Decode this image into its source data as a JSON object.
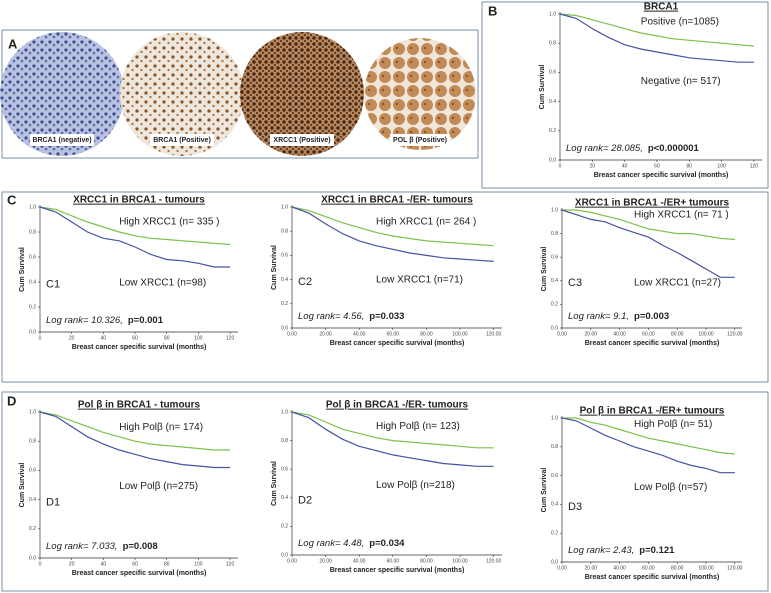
{
  "figure": {
    "panel_labels": [
      "A",
      "B",
      "C",
      "D"
    ],
    "image_captions": [
      "BRCA1 (negative)",
      "BRCA1 (Positive)",
      "XRCC1 (Positive)",
      "POL β (Positive)"
    ]
  },
  "chart_data": [
    {
      "type": "line",
      "title": "BRCA1",
      "xlabel": "Breast cancer specific survival (months)",
      "ylabel": "Cum Survival",
      "xlim": [
        0,
        125
      ],
      "ylim": [
        0,
        1
      ],
      "xticks": [
        0,
        20,
        40,
        60,
        80,
        100,
        120
      ],
      "yticks": [
        {
          "value": 0,
          "label": "0.0"
        },
        {
          "value": 0.2,
          "label": "0.2"
        },
        {
          "value": 0.4,
          "label": "0.4"
        },
        {
          "value": 0.6,
          "label": "0.6"
        },
        {
          "value": 0.8,
          "label": "0.8"
        },
        {
          "value": 1,
          "label": "1.0"
        }
      ],
      "series": [
        {
          "name": "Positive (n=1085)",
          "color": "#7cc24a",
          "x": [
            0,
            10,
            20,
            30,
            40,
            50,
            60,
            70,
            80,
            90,
            100,
            110,
            120
          ],
          "values": [
            1,
            0.99,
            0.96,
            0.93,
            0.9,
            0.87,
            0.85,
            0.83,
            0.82,
            0.81,
            0.8,
            0.79,
            0.78
          ]
        },
        {
          "name": "Negative (n= 517)",
          "color": "#4453a3",
          "x": [
            0,
            10,
            20,
            30,
            40,
            50,
            60,
            70,
            80,
            90,
            100,
            110,
            120
          ],
          "values": [
            1,
            0.97,
            0.9,
            0.84,
            0.79,
            0.76,
            0.74,
            0.72,
            0.7,
            0.69,
            0.68,
            0.67,
            0.67
          ]
        }
      ],
      "stat": "Log rank= 28.085,",
      "p_value": "p<0.000001"
    },
    {
      "type": "line",
      "label": "C1",
      "title": "XRCC1 in BRCA1 - tumours",
      "xlabel": "Breast cancer specific survival (months)",
      "ylabel": "Cum Survival",
      "xlim": [
        0,
        125
      ],
      "ylim": [
        0,
        1
      ],
      "xticks": [
        0,
        20,
        40,
        60,
        80,
        100,
        120
      ],
      "yticks": [
        {
          "value": 0,
          "label": "0.0"
        },
        {
          "value": 0.2,
          "label": "0.2"
        },
        {
          "value": 0.4,
          "label": "0.4"
        },
        {
          "value": 0.6,
          "label": "0.6"
        },
        {
          "value": 0.8,
          "label": "0.8"
        },
        {
          "value": 1,
          "label": "1.0"
        }
      ],
      "series": [
        {
          "name": "High XRCC1  (n= 335 )",
          "color": "#7cc24a",
          "x": [
            0,
            10,
            20,
            30,
            40,
            50,
            60,
            70,
            80,
            90,
            100,
            110,
            120
          ],
          "values": [
            1,
            0.98,
            0.93,
            0.88,
            0.84,
            0.8,
            0.77,
            0.75,
            0.74,
            0.73,
            0.72,
            0.71,
            0.7
          ]
        },
        {
          "name": "Low XRCC1  (n=98)",
          "color": "#4453a3",
          "x": [
            0,
            10,
            20,
            30,
            40,
            50,
            60,
            70,
            80,
            90,
            100,
            110,
            120
          ],
          "values": [
            1,
            0.96,
            0.88,
            0.8,
            0.75,
            0.73,
            0.68,
            0.62,
            0.58,
            0.57,
            0.55,
            0.52,
            0.52
          ]
        }
      ],
      "stat": "Log rank= 10.326,",
      "p_value": "p=0.001"
    },
    {
      "type": "line",
      "label": "C2",
      "title": "XRCC1 in BRCA1 -/ER- tumours",
      "xlabel": "Breast cancer specific survival (months)",
      "ylabel": "Cum Survival",
      "xlim": [
        0,
        125
      ],
      "ylim": [
        0,
        1
      ],
      "xticks": [
        {
          "value": 0,
          "label": "0.00"
        },
        {
          "value": 20,
          "label": "20.00"
        },
        {
          "value": 40,
          "label": "40.00"
        },
        {
          "value": 60,
          "label": "60.00"
        },
        {
          "value": 80,
          "label": "80.00"
        },
        {
          "value": 100,
          "label": "100.00"
        },
        {
          "value": 120,
          "label": "120.00"
        }
      ],
      "yticks": [
        {
          "value": 0,
          "label": "0.0"
        },
        {
          "value": 0.2,
          "label": "0.2"
        },
        {
          "value": 0.4,
          "label": "0.4"
        },
        {
          "value": 0.6,
          "label": "0.6"
        },
        {
          "value": 0.8,
          "label": "0.8"
        },
        {
          "value": 1,
          "label": "1.0"
        }
      ],
      "series": [
        {
          "name": "High XRCC1   (n= 264 )",
          "color": "#7cc24a",
          "x": [
            0,
            10,
            20,
            30,
            40,
            50,
            60,
            70,
            80,
            90,
            100,
            110,
            120
          ],
          "values": [
            1,
            0.97,
            0.92,
            0.87,
            0.83,
            0.79,
            0.76,
            0.74,
            0.72,
            0.71,
            0.7,
            0.69,
            0.68
          ]
        },
        {
          "name": "Low XRCC1  (n=71)",
          "color": "#4453a3",
          "x": [
            0,
            10,
            20,
            30,
            40,
            50,
            60,
            70,
            80,
            90,
            100,
            110,
            120
          ],
          "values": [
            1,
            0.95,
            0.86,
            0.78,
            0.72,
            0.68,
            0.65,
            0.62,
            0.6,
            0.58,
            0.57,
            0.56,
            0.55
          ]
        }
      ],
      "stat": "Log rank= 4.56,",
      "p_value": "p=0.033"
    },
    {
      "type": "line",
      "label": "C3",
      "title": "XRCC1 in BRCA1 -/ER+ tumours",
      "xlabel": "Breast cancer specific survival (months)",
      "ylabel": "Cum Survival",
      "xlim": [
        0,
        125
      ],
      "ylim": [
        0,
        1
      ],
      "xticks": [
        {
          "value": 0,
          "label": "0.00"
        },
        {
          "value": 20,
          "label": "20.00"
        },
        {
          "value": 40,
          "label": "40.00"
        },
        {
          "value": 60,
          "label": "60.00"
        },
        {
          "value": 80,
          "label": "80.00"
        },
        {
          "value": 100,
          "label": "100.00"
        },
        {
          "value": 120,
          "label": "120.00"
        }
      ],
      "yticks": [
        {
          "value": 0,
          "label": "0.0"
        },
        {
          "value": 0.2,
          "label": "0.2"
        },
        {
          "value": 0.4,
          "label": "0.4"
        },
        {
          "value": 0.6,
          "label": "0.6"
        },
        {
          "value": 0.8,
          "label": "0.8"
        },
        {
          "value": 1,
          "label": "1.0"
        }
      ],
      "series": [
        {
          "name": "High XRCC1   (n= 71 )",
          "color": "#7cc24a",
          "x": [
            0,
            10,
            20,
            30,
            40,
            50,
            60,
            70,
            80,
            90,
            100,
            110,
            120
          ],
          "values": [
            1,
            1,
            0.98,
            0.95,
            0.92,
            0.88,
            0.84,
            0.82,
            0.8,
            0.8,
            0.78,
            0.76,
            0.75
          ]
        },
        {
          "name": "Low XRCC1  (n=27)",
          "color": "#4453a3",
          "x": [
            0,
            10,
            20,
            30,
            40,
            50,
            60,
            70,
            80,
            90,
            100,
            110,
            120
          ],
          "values": [
            1,
            0.96,
            0.92,
            0.9,
            0.85,
            0.81,
            0.77,
            0.7,
            0.64,
            0.57,
            0.5,
            0.43,
            0.43
          ]
        }
      ],
      "stat": "Log rank= 9.1,",
      "p_value": "p=0.003"
    },
    {
      "type": "line",
      "label": "D1",
      "title": "Pol β in BRCA1 - tumours",
      "xlabel": "Breast cancer specific survival (months)",
      "ylabel": "Cum Survival",
      "xlim": [
        0,
        125
      ],
      "ylim": [
        0,
        1
      ],
      "xticks": [
        0,
        20,
        40,
        60,
        80,
        100,
        120
      ],
      "yticks": [
        {
          "value": 0,
          "label": "0.0"
        },
        {
          "value": 0.2,
          "label": "0.2"
        },
        {
          "value": 0.4,
          "label": "0.4"
        },
        {
          "value": 0.6,
          "label": "0.6"
        },
        {
          "value": 0.8,
          "label": "0.8"
        },
        {
          "value": 1,
          "label": "1.0"
        }
      ],
      "series": [
        {
          "name": "High Polβ   (n= 174)",
          "color": "#7cc24a",
          "x": [
            0,
            10,
            20,
            30,
            40,
            50,
            60,
            70,
            80,
            90,
            100,
            110,
            120
          ],
          "values": [
            1,
            0.98,
            0.94,
            0.9,
            0.86,
            0.83,
            0.8,
            0.78,
            0.77,
            0.76,
            0.75,
            0.74,
            0.74
          ]
        },
        {
          "name": "Low Polβ  (n=275)",
          "color": "#4453a3",
          "x": [
            0,
            10,
            20,
            30,
            40,
            50,
            60,
            70,
            80,
            90,
            100,
            110,
            120
          ],
          "values": [
            1,
            0.97,
            0.9,
            0.83,
            0.78,
            0.74,
            0.71,
            0.68,
            0.66,
            0.64,
            0.63,
            0.62,
            0.62
          ]
        }
      ],
      "stat": "Log rank= 7.033,",
      "p_value": "p=0.008"
    },
    {
      "type": "line",
      "label": "D2",
      "title": "Pol β in BRCA1 -/ER- tumours",
      "xlabel": "Breast cancer specific survival (months)",
      "ylabel": "Cum Survival",
      "xlim": [
        0,
        125
      ],
      "ylim": [
        0,
        1
      ],
      "xticks": [
        {
          "value": 0,
          "label": "0.00"
        },
        {
          "value": 20,
          "label": "20.00"
        },
        {
          "value": 40,
          "label": "40.00"
        },
        {
          "value": 60,
          "label": "60.00"
        },
        {
          "value": 80,
          "label": "80.00"
        },
        {
          "value": 100,
          "label": "100.00"
        },
        {
          "value": 120,
          "label": "120.00"
        }
      ],
      "yticks": [
        {
          "value": 0,
          "label": "0.0"
        },
        {
          "value": 0.2,
          "label": "0.2"
        },
        {
          "value": 0.4,
          "label": "0.4"
        },
        {
          "value": 0.6,
          "label": "0.6"
        },
        {
          "value": 0.8,
          "label": "0.8"
        },
        {
          "value": 1,
          "label": "1.0"
        }
      ],
      "series": [
        {
          "name": "High Polβ   (n= 123)",
          "color": "#7cc24a",
          "x": [
            0,
            10,
            20,
            30,
            40,
            50,
            60,
            70,
            80,
            90,
            100,
            110,
            120
          ],
          "values": [
            1,
            0.98,
            0.93,
            0.88,
            0.85,
            0.82,
            0.8,
            0.79,
            0.78,
            0.77,
            0.76,
            0.75,
            0.75
          ]
        },
        {
          "name": "Low Polβ  (n=218)",
          "color": "#4453a3",
          "x": [
            0,
            10,
            20,
            30,
            40,
            50,
            60,
            70,
            80,
            90,
            100,
            110,
            120
          ],
          "values": [
            1,
            0.96,
            0.88,
            0.81,
            0.76,
            0.73,
            0.7,
            0.68,
            0.66,
            0.64,
            0.63,
            0.62,
            0.62
          ]
        }
      ],
      "stat": "Log rank= 4.48,",
      "p_value": "p=0.034"
    },
    {
      "type": "line",
      "label": "D3",
      "title": "Pol β in BRCA1 -/ER+ tumours",
      "xlabel": "Breast cancer specific survival (months)",
      "ylabel": "Cum Survival",
      "xlim": [
        0,
        125
      ],
      "ylim": [
        0,
        1
      ],
      "xticks": [
        {
          "value": 0,
          "label": "0.00"
        },
        {
          "value": 20,
          "label": "20.00"
        },
        {
          "value": 40,
          "label": "40.00"
        },
        {
          "value": 60,
          "label": "60.00"
        },
        {
          "value": 80,
          "label": "80.00"
        },
        {
          "value": 100,
          "label": "100.00"
        },
        {
          "value": 120,
          "label": "120.00"
        }
      ],
      "yticks": [
        {
          "value": 0,
          "label": "0.0"
        },
        {
          "value": 0.2,
          "label": "0.2"
        },
        {
          "value": 0.4,
          "label": "0.4"
        },
        {
          "value": 0.6,
          "label": "0.6"
        },
        {
          "value": 0.8,
          "label": "0.8"
        },
        {
          "value": 1,
          "label": "1.0"
        }
      ],
      "series": [
        {
          "name": "High Polβ   (n= 51)",
          "color": "#7cc24a",
          "x": [
            0,
            10,
            20,
            30,
            40,
            50,
            60,
            70,
            80,
            90,
            100,
            110,
            120
          ],
          "values": [
            1,
            1,
            0.97,
            0.95,
            0.92,
            0.89,
            0.86,
            0.84,
            0.82,
            0.8,
            0.78,
            0.76,
            0.75
          ]
        },
        {
          "name": "Low Polβ  (n=57)",
          "color": "#4453a3",
          "x": [
            0,
            10,
            20,
            30,
            40,
            50,
            60,
            70,
            80,
            90,
            100,
            110,
            120
          ],
          "values": [
            1,
            0.98,
            0.93,
            0.88,
            0.84,
            0.8,
            0.77,
            0.74,
            0.7,
            0.67,
            0.65,
            0.62,
            0.62
          ]
        }
      ],
      "stat": "Log rank= 2.43,",
      "p_value": "p=0.121"
    }
  ]
}
